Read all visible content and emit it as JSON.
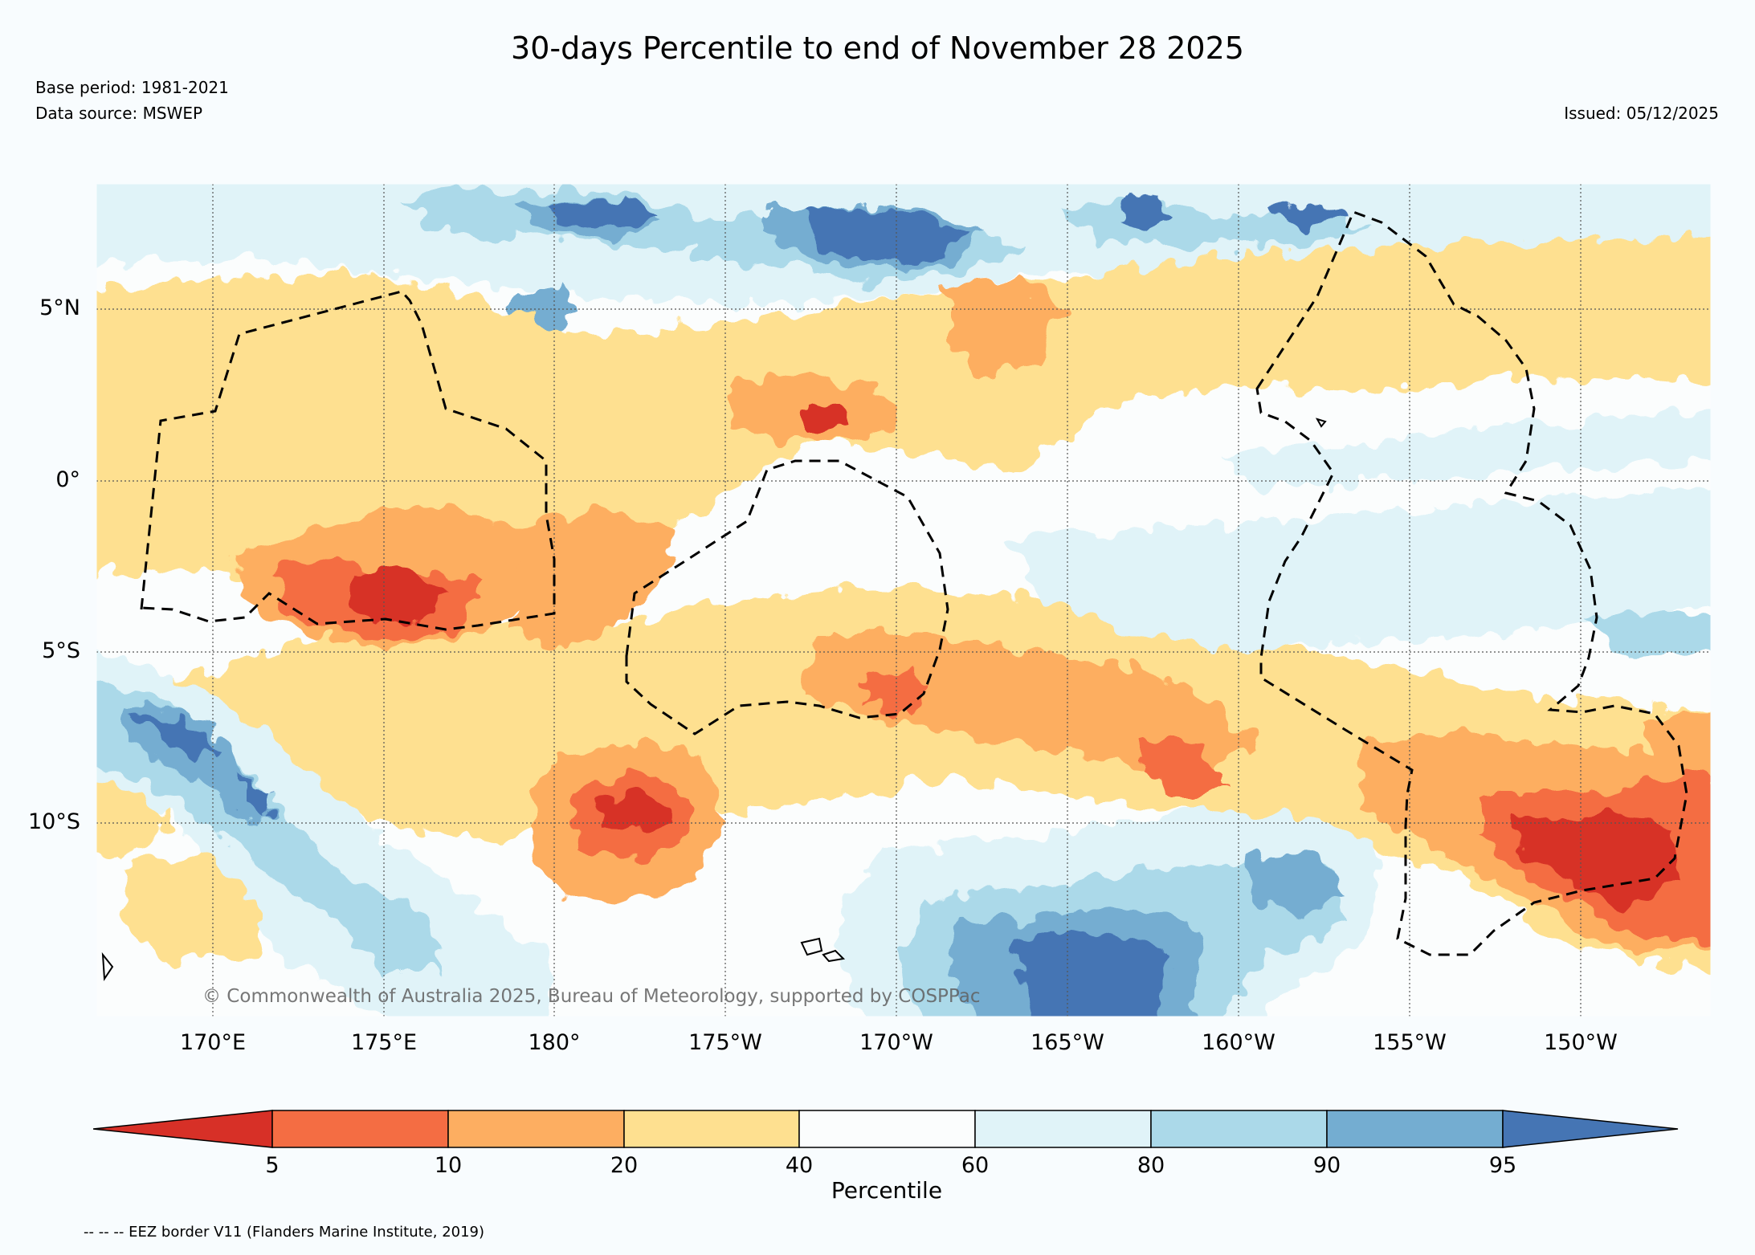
{
  "title": "30-days Percentile to end of November 28 2025",
  "base_period": "Base period: 1981-2021",
  "data_source": "Data source: MSWEP",
  "issued": "Issued: 05/12/2025",
  "credit": "© Commonwealth of Australia 2025, Bureau of Meteorology, supported by COSPPac",
  "eez_note": "-- -- -- EEZ border V11 (Flanders Marine Institute, 2019)",
  "lat_labels": [
    "5°N",
    "0°",
    "5°S",
    "10°S"
  ],
  "lon_labels": [
    "170°E",
    "175°E",
    "180°",
    "175°W",
    "170°W",
    "165°W",
    "160°W",
    "155°W",
    "150°W"
  ],
  "colorbar": {
    "label": "Percentile",
    "ticks": [
      "5",
      "10",
      "20",
      "40",
      "60",
      "80",
      "90",
      "95"
    ],
    "colors": {
      "lt5": "#d73027",
      "5-10": "#f46d43",
      "10-20": "#fdae61",
      "20-40": "#fee090",
      "40-60": "#fbfdfd",
      "60-80": "#e0f3f8",
      "80-90": "#abd9e9",
      "90-95": "#74add1",
      "gt95": "#4575b4"
    }
  }
}
